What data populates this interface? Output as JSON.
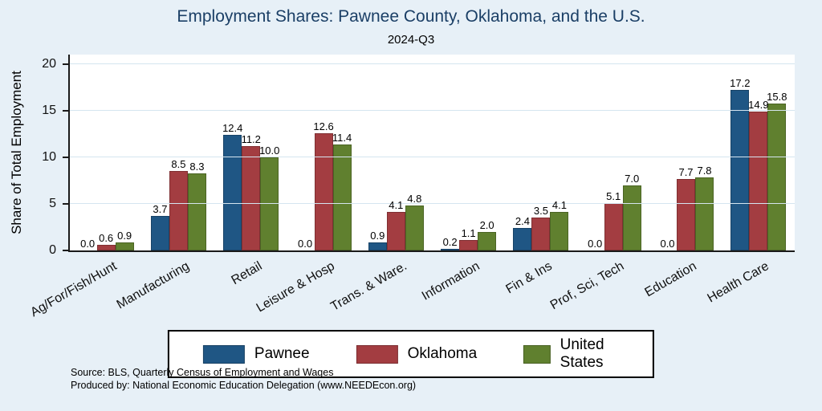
{
  "colors": {
    "background": "#e7f0f7",
    "plot_background": "#ffffff",
    "gridline": "#d5e5f0",
    "title_text": "#1b3f66",
    "axis_line": "#1a1a1a"
  },
  "chart_data": {
    "type": "bar",
    "title": "Employment Shares: Pawnee County, Oklahoma, and the U.S.",
    "subtitle": "2024-Q3",
    "ylabel": "Share of Total Employment",
    "ylim": [
      0,
      20
    ],
    "yticks": [
      0,
      5,
      10,
      15,
      20
    ],
    "grid": true,
    "legend_position": "bottom",
    "categories": [
      "Ag/For/Fish/Hunt",
      "Manufacturing",
      "Retail",
      "Leisure & Hosp",
      "Trans. & Ware.",
      "Information",
      "Fin & Ins",
      "Prof, Sci, Tech",
      "Education",
      "Health Care"
    ],
    "series": [
      {
        "name": "Pawnee",
        "color": "#1f5684",
        "values": [
          0.0,
          3.7,
          12.4,
          0.0,
          0.9,
          0.2,
          2.4,
          0.0,
          0.0,
          17.2
        ]
      },
      {
        "name": "Oklahoma",
        "color": "#a33d41",
        "values": [
          0.6,
          8.5,
          11.2,
          12.6,
          4.1,
          1.1,
          3.5,
          5.1,
          7.7,
          14.9
        ]
      },
      {
        "name": "United States",
        "color": "#60802f",
        "values": [
          0.9,
          8.3,
          10.0,
          11.4,
          4.8,
          2.0,
          4.1,
          7.0,
          7.8,
          15.8
        ]
      }
    ],
    "notes": [
      "Source: BLS, Quarterly Census of Employment and Wages",
      "Produced by: National Economic Education Delegation (www.NEEDEcon.org)"
    ]
  }
}
